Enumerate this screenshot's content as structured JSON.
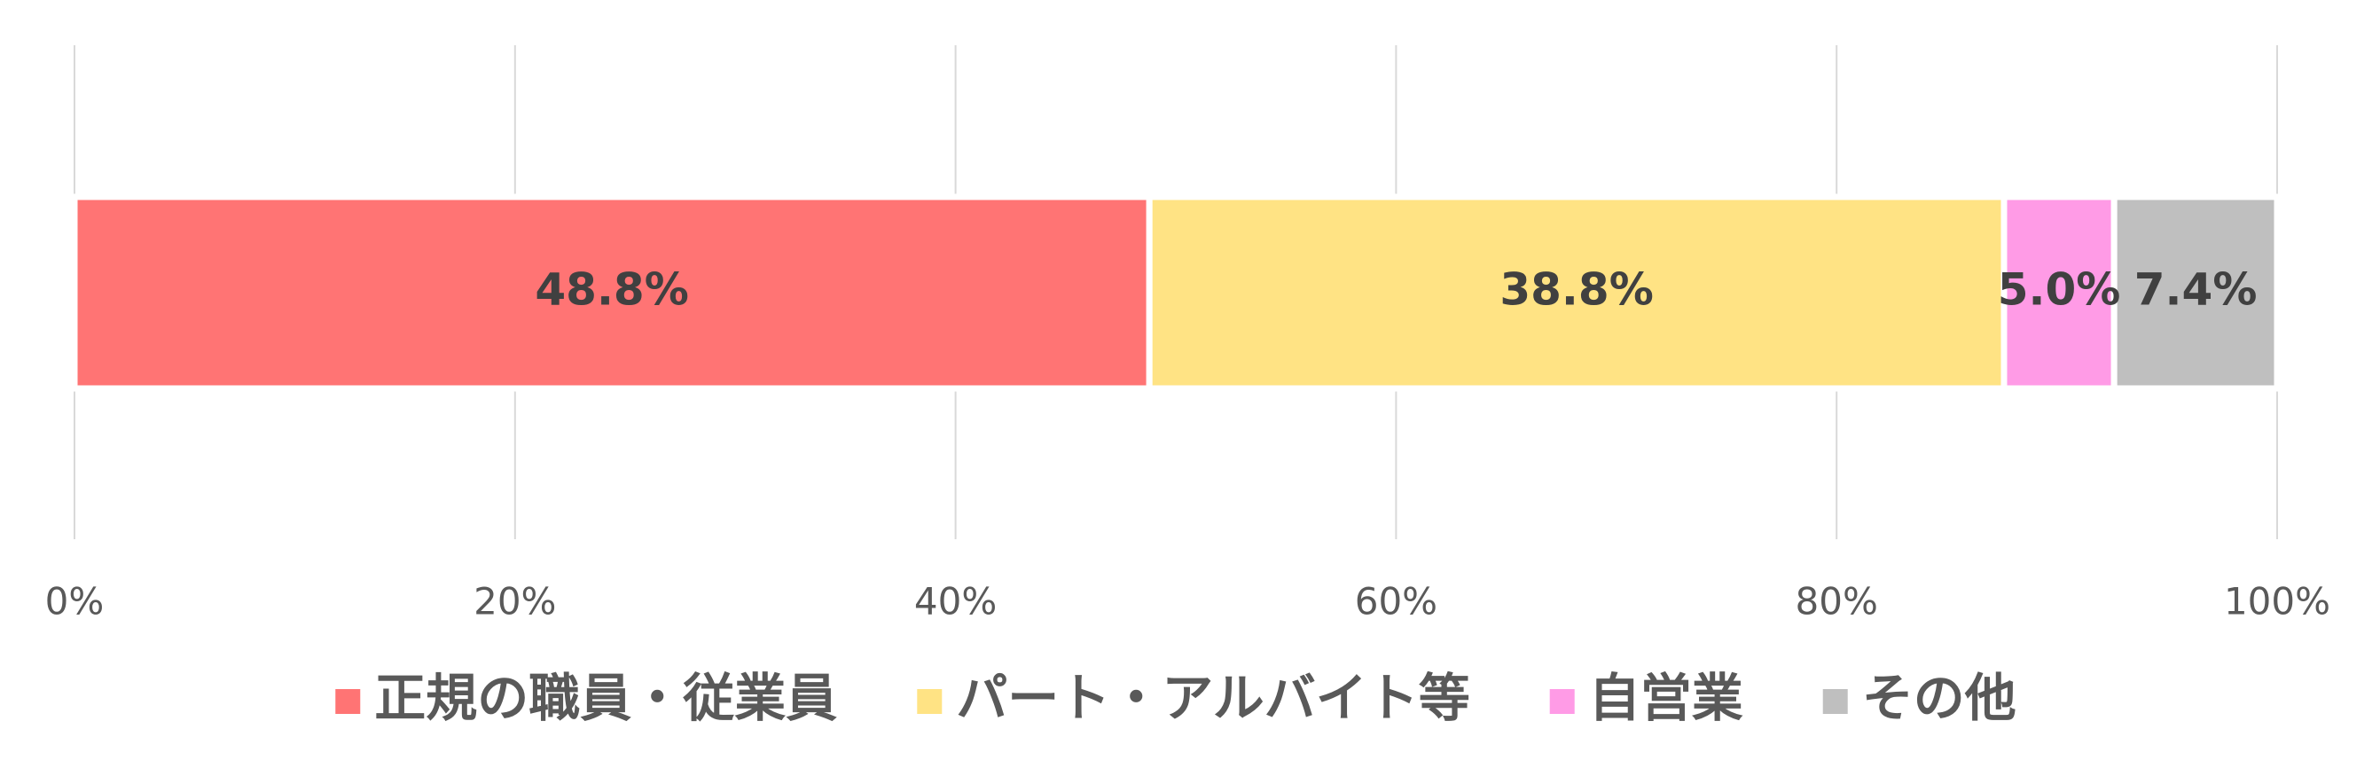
{
  "chart_data": {
    "type": "bar",
    "orientation": "horizontal",
    "stacked": true,
    "categories": [
      null
    ],
    "series": [
      {
        "name": "正規の職員・従業員",
        "color": "#ff7474",
        "values": [
          48.8
        ],
        "value_labels": [
          "48.8%"
        ]
      },
      {
        "name": "パート・アルバイト等",
        "color": "#ffe384",
        "values": [
          38.8
        ],
        "value_labels": [
          "38.8%"
        ]
      },
      {
        "name": "自営業",
        "color": "#ff9be6",
        "values": [
          5.0
        ],
        "value_labels": [
          "5.0%"
        ]
      },
      {
        "name": "その他",
        "color": "#bfbfbf",
        "values": [
          7.4
        ],
        "value_labels": [
          "7.4%"
        ]
      }
    ],
    "xlim": [
      0,
      100
    ],
    "xticks": [
      {
        "value": 0,
        "label": "0%"
      },
      {
        "value": 20,
        "label": "20%"
      },
      {
        "value": 40,
        "label": "40%"
      },
      {
        "value": 60,
        "label": "60%"
      },
      {
        "value": 80,
        "label": "80%"
      },
      {
        "value": 100,
        "label": "100%"
      }
    ],
    "grid": true,
    "legend": "bottom"
  }
}
